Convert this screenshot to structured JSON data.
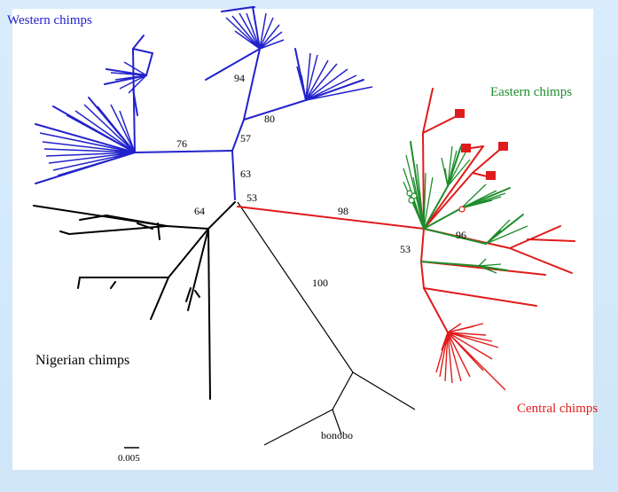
{
  "labels": {
    "western": "Western chimps",
    "eastern": "Eastern chimps",
    "nigerian": "Nigerian chimps",
    "central": "Central chimps",
    "bonobo": "bonobo",
    "scale": "0.005"
  },
  "bootstrap": {
    "b94": "94",
    "b80": "80",
    "b57": "57",
    "b76": "76",
    "b63": "63",
    "b53_center": "53",
    "b64": "64",
    "b98": "98",
    "b96": "96",
    "b53_central": "53",
    "b100": "100"
  },
  "colors": {
    "western": "#2222cc",
    "eastern": "#1e8c2a",
    "central": "#e01b1b",
    "nigerian": "#000000",
    "outgroup": "#000000",
    "background": "#d6eaf9"
  }
}
